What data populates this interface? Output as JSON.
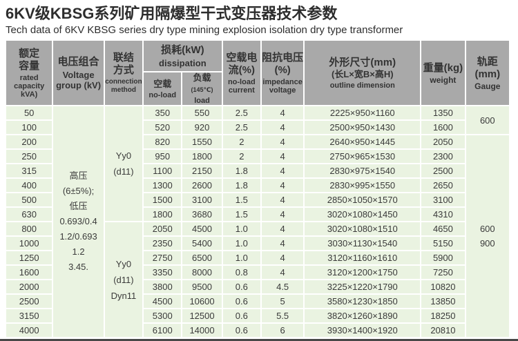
{
  "title": {
    "zh": "6KV级KBSG系列矿用隔爆型干式变压器技术参数",
    "en": "Tech data of 6KV KBSG series dry type mining explosion isolation dry type transformer"
  },
  "colors": {
    "header_bg": "#a9a9a9",
    "row_bg": "#eaf3e1",
    "cell_border": "#ffffff",
    "bottom_rule": "#474747",
    "text": "#3a3a3a"
  },
  "table": {
    "headers": {
      "capacity": {
        "zh_lines": [
          "额定",
          "容量"
        ],
        "en": "rated capacity kVA)"
      },
      "voltage": {
        "zh": "电压组合",
        "en": "Voltage group (kV)"
      },
      "connection": {
        "zh_lines": [
          "联结",
          "方式"
        ],
        "en": "connection method"
      },
      "dissipation": {
        "zh": "损耗(kW)",
        "en": "dissipation"
      },
      "noload_sub": {
        "zh": "空载",
        "en": "no-load"
      },
      "load_sub": {
        "zh": "负载",
        "zh_note": "(145℃)",
        "en": "load"
      },
      "noload_current": {
        "zh": "空载电流(%)",
        "en": "no-load current"
      },
      "impedance": {
        "zh": "阻抗电压(%)",
        "en": "impedance voltage"
      },
      "outline": {
        "zh_lines": [
          "外形尺寸(mm)",
          "(长L×宽B×高H)"
        ],
        "en": "outline dimension"
      },
      "weight": {
        "zh": "重量(kg)",
        "en": "weight"
      },
      "gauge": {
        "zh": "轨距(mm)",
        "en": "Gauge"
      }
    },
    "voltage_group_lines": [
      "高压",
      "(6±5%);",
      "低压",
      "0.693/0.4",
      "1.2/0.693",
      "1.2",
      "3.45."
    ],
    "connection_groups": [
      {
        "lines": [
          "Yy0",
          "(d11)"
        ],
        "row_span": 8
      },
      {
        "lines": [
          "Yy0",
          "(d11)",
          "Dyn11"
        ],
        "row_span": 8
      }
    ],
    "gauge": {
      "rows_1_2_value": "600",
      "rows_9_10_values": [
        "600",
        "900"
      ]
    },
    "rows": [
      {
        "capacity": "50",
        "no_load_loss": "350",
        "load_loss": "550",
        "no_load_current": "2.5",
        "impedance_voltage": "4",
        "outline_dimension": "2225×950×1160",
        "weight": "1350"
      },
      {
        "capacity": "100",
        "no_load_loss": "520",
        "load_loss": "920",
        "no_load_current": "2.5",
        "impedance_voltage": "4",
        "outline_dimension": "2500×950×1430",
        "weight": "1600"
      },
      {
        "capacity": "200",
        "no_load_loss": "820",
        "load_loss": "1550",
        "no_load_current": "2",
        "impedance_voltage": "4",
        "outline_dimension": "2640×950×1445",
        "weight": "2050"
      },
      {
        "capacity": "250",
        "no_load_loss": "950",
        "load_loss": "1800",
        "no_load_current": "2",
        "impedance_voltage": "4",
        "outline_dimension": "2750×965×1530",
        "weight": "2300"
      },
      {
        "capacity": "315",
        "no_load_loss": "1100",
        "load_loss": "2150",
        "no_load_current": "1.8",
        "impedance_voltage": "4",
        "outline_dimension": "2830×975×1540",
        "weight": "2500"
      },
      {
        "capacity": "400",
        "no_load_loss": "1300",
        "load_loss": "2600",
        "no_load_current": "1.8",
        "impedance_voltage": "4",
        "outline_dimension": "2830×995×1550",
        "weight": "2650"
      },
      {
        "capacity": "500",
        "no_load_loss": "1500",
        "load_loss": "3100",
        "no_load_current": "1.5",
        "impedance_voltage": "4",
        "outline_dimension": "2850×1050×1570",
        "weight": "3100"
      },
      {
        "capacity": "630",
        "no_load_loss": "1800",
        "load_loss": "3680",
        "no_load_current": "1.5",
        "impedance_voltage": "4",
        "outline_dimension": "3020×1080×1450",
        "weight": "4310"
      },
      {
        "capacity": "800",
        "no_load_loss": "2050",
        "load_loss": "4500",
        "no_load_current": "1.0",
        "impedance_voltage": "4",
        "outline_dimension": "3020×1080×1510",
        "weight": "4650"
      },
      {
        "capacity": "1000",
        "no_load_loss": "2350",
        "load_loss": "5400",
        "no_load_current": "1.0",
        "impedance_voltage": "4",
        "outline_dimension": "3030×1130×1540",
        "weight": "5150"
      },
      {
        "capacity": "1250",
        "no_load_loss": "2750",
        "load_loss": "6500",
        "no_load_current": "1.0",
        "impedance_voltage": "4",
        "outline_dimension": "3120×1160×1610",
        "weight": "5900"
      },
      {
        "capacity": "1600",
        "no_load_loss": "3350",
        "load_loss": "8000",
        "no_load_current": "0.8",
        "impedance_voltage": "4",
        "outline_dimension": "3120×1200×1750",
        "weight": "7250"
      },
      {
        "capacity": "2000",
        "no_load_loss": "3800",
        "load_loss": "9500",
        "no_load_current": "0.6",
        "impedance_voltage": "4.5",
        "outline_dimension": "3225×1220×1790",
        "weight": "10820"
      },
      {
        "capacity": "2500",
        "no_load_loss": "4500",
        "load_loss": "10600",
        "no_load_current": "0.6",
        "impedance_voltage": "5",
        "outline_dimension": "3580×1230×1850",
        "weight": "13850"
      },
      {
        "capacity": "3150",
        "no_load_loss": "5300",
        "load_loss": "12500",
        "no_load_current": "0.6",
        "impedance_voltage": "5.5",
        "outline_dimension": "3820×1260×1890",
        "weight": "18250"
      },
      {
        "capacity": "4000",
        "no_load_loss": "6100",
        "load_loss": "14000",
        "no_load_current": "0.6",
        "impedance_voltage": "6",
        "outline_dimension": "3930×1400×1920",
        "weight": "20810"
      }
    ]
  }
}
